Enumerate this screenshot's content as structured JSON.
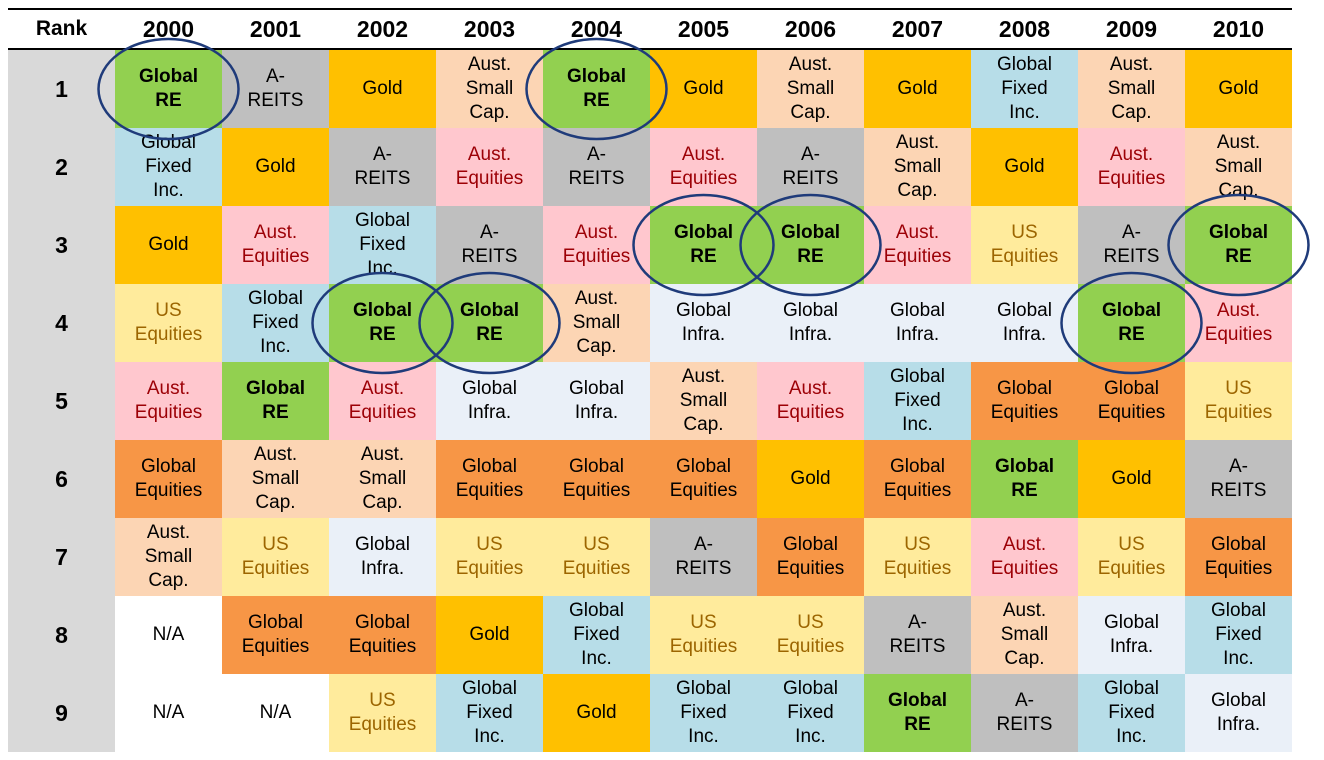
{
  "chart_data": {
    "type": "table",
    "header": {
      "rank_label": "Rank"
    },
    "years": [
      "2000",
      "2001",
      "2002",
      "2003",
      "2004",
      "2005",
      "2006",
      "2007",
      "2008",
      "2009",
      "2010"
    ],
    "ranks": [
      "1",
      "2",
      "3",
      "4",
      "5",
      "6",
      "7",
      "8",
      "9"
    ],
    "highlighted_asset": "Global\nRE",
    "columns": [
      [
        "Global\nRE",
        "Global\nFixed\nInc.",
        "Gold",
        "US\nEquities",
        "Aust.\nEquities",
        "Global\nEquities",
        "Aust.\nSmall\nCap.",
        "N/A",
        "N/A"
      ],
      [
        "A-\nREITS",
        "Gold",
        "Aust.\nEquities",
        "Global\nFixed\nInc.",
        "Global\nRE",
        "Aust.\nSmall\nCap.",
        "US\nEquities",
        "Global\nEquities",
        "N/A"
      ],
      [
        "Gold",
        "A-\nREITS",
        "Global\nFixed\nInc.",
        "Global\nRE",
        "Aust.\nEquities",
        "Aust.\nSmall\nCap.",
        "Global\nInfra.",
        "Global\nEquities",
        "US\nEquities"
      ],
      [
        "Aust.\nSmall\nCap.",
        "Aust.\nEquities",
        "A-\nREITS",
        "Global\nRE",
        "Global\nInfra.",
        "Global\nEquities",
        "US\nEquities",
        "Gold",
        "Global\nFixed\nInc."
      ],
      [
        "Global\nRE",
        "A-\nREITS",
        "Aust.\nEquities",
        "Aust.\nSmall\nCap.",
        "Global\nInfra.",
        "Global\nEquities",
        "US\nEquities",
        "Global\nFixed\nInc.",
        "Gold"
      ],
      [
        "Gold",
        "Aust.\nEquities",
        "Global\nRE",
        "Global\nInfra.",
        "Aust.\nSmall\nCap.",
        "Global\nEquities",
        "A-\nREITS",
        "US\nEquities",
        "Global\nFixed\nInc."
      ],
      [
        "Aust.\nSmall\nCap.",
        "A-\nREITS",
        "Global\nRE",
        "Global\nInfra.",
        "Aust.\nEquities",
        "Gold",
        "Global\nEquities",
        "US\nEquities",
        "Global\nFixed\nInc."
      ],
      [
        "Gold",
        "Aust.\nSmall\nCap.",
        "Aust.\nEquities",
        "Global\nInfra.",
        "Global\nFixed\nInc.",
        "Global\nEquities",
        "US\nEquities",
        "A-\nREITS",
        "Global\nRE"
      ],
      [
        "Global\nFixed\nInc.",
        "Gold",
        "US\nEquities",
        "Global\nInfra.",
        "Global\nEquities",
        "Global\nRE",
        "Aust.\nEquities",
        "Aust.\nSmall\nCap.",
        "A-\nREITS"
      ],
      [
        "Aust.\nSmall\nCap.",
        "Aust.\nEquities",
        "A-\nREITS",
        "Global\nRE",
        "Global\nEquities",
        "Gold",
        "US\nEquities",
        "Global\nInfra.",
        "Global\nFixed\nInc."
      ],
      [
        "Gold",
        "Aust.\nSmall\nCap.",
        "Global\nRE",
        "Aust.\nEquities",
        "US\nEquities",
        "A-\nREITS",
        "Global\nEquities",
        "Global\nFixed\nInc.",
        "Global\nInfra."
      ]
    ],
    "category_colors": {
      "Gold": "#ffc000",
      "A-REITS": "#bfbfbf",
      "Aust. Small Cap.": "#fcd5b4",
      "Global Fixed Inc.": "#b7dde8",
      "Aust. Equities": "#ffc7ce",
      "US Equities": "#ffeb9c",
      "Global Infra.": "#eaf0f8",
      "Global Equities": "#f79646",
      "Global RE": "#92d050",
      "N/A": "#ffffff"
    },
    "circle_color": "#1f3b7a"
  }
}
